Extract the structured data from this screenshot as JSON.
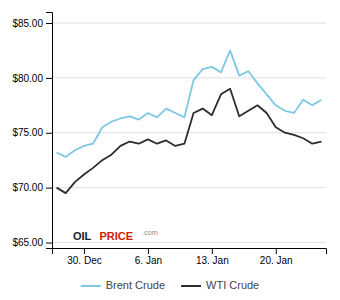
{
  "chart_data": {
    "type": "line",
    "x": [
      0,
      1,
      2,
      3,
      4,
      5,
      6,
      7,
      8,
      9,
      10,
      11,
      12,
      13,
      14,
      15,
      16,
      17,
      18,
      19,
      20,
      21,
      22,
      23,
      24,
      25,
      26,
      27,
      28,
      29
    ],
    "series": [
      {
        "name": "Brent Crude",
        "color": "#7ec8e3",
        "values": [
          73.2,
          72.8,
          73.4,
          73.8,
          74.0,
          75.5,
          76.0,
          76.3,
          76.5,
          76.2,
          76.8,
          76.4,
          77.2,
          76.8,
          76.4,
          79.8,
          80.8,
          81.0,
          80.5,
          82.5,
          80.2,
          80.6,
          79.5,
          78.5,
          77.5,
          77.0,
          76.8,
          78.0,
          77.5,
          78.0
        ]
      },
      {
        "name": "WTI Crude",
        "color": "#2d2d2d",
        "values": [
          70.0,
          69.5,
          70.5,
          71.2,
          71.8,
          72.5,
          73.0,
          73.8,
          74.2,
          74.0,
          74.4,
          74.0,
          74.3,
          73.8,
          74.0,
          76.8,
          77.2,
          76.6,
          78.5,
          79.0,
          76.5,
          77.0,
          77.5,
          76.8,
          75.5,
          75.0,
          74.8,
          74.5,
          74.0,
          74.2
        ]
      }
    ],
    "xlim": [
      -0.5,
      29.5
    ],
    "xticks": [
      {
        "value": 3,
        "label": "30. Dec"
      },
      {
        "value": 10,
        "label": "6. Jan"
      },
      {
        "value": 17,
        "label": "13. Jan"
      },
      {
        "value": 24,
        "label": "20. Jan"
      }
    ],
    "ylim": [
      64.5,
      86
    ],
    "yticks": [
      {
        "value": 65,
        "label": "$65.00"
      },
      {
        "value": 70,
        "label": "$70.00"
      },
      {
        "value": 75,
        "label": "$75.00"
      },
      {
        "value": 80,
        "label": "$80.00"
      },
      {
        "value": 85,
        "label": "$85.00"
      }
    ],
    "grid": "y",
    "legend": "bottom",
    "annotations": [
      {
        "text": "OIL",
        "x": 1.8,
        "y": 65.5,
        "color": "#1a1a2e"
      },
      {
        "text": "PRICE",
        "x": 4.7,
        "y": 65.5,
        "color": "#cc2200"
      },
      {
        "text": ".com",
        "x": 9.4,
        "y": 65.85,
        "color": "#888888"
      }
    ]
  }
}
